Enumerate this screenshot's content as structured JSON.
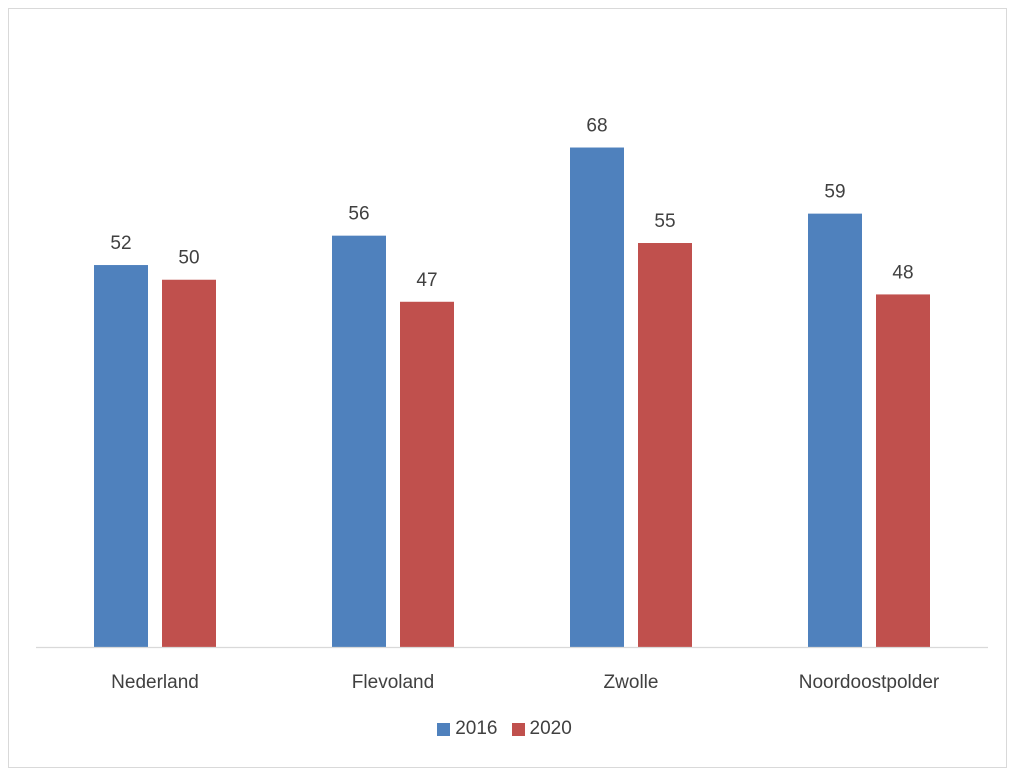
{
  "chart_data": {
    "type": "bar",
    "categories": [
      "Nederland",
      "Flevoland",
      "Zwolle",
      "Noordoostpolder"
    ],
    "series": [
      {
        "name": "2016",
        "color": "#4f81bd",
        "values": [
          52,
          56,
          68,
          59
        ]
      },
      {
        "name": "2020",
        "color": "#c0504d",
        "values": [
          50,
          47,
          55,
          48
        ]
      }
    ],
    "title": "",
    "xlabel": "",
    "ylabel": "",
    "ylim": [
      0,
      84
    ],
    "grid": false,
    "legend": "bottom",
    "data_labels": true
  }
}
